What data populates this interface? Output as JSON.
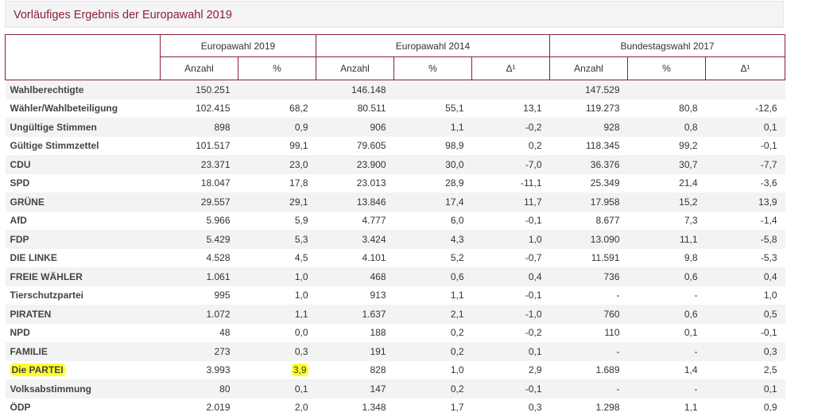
{
  "page": {
    "title": "Vorläufiges Ergebnis der Europawahl 2019"
  },
  "colors": {
    "accent": "#8a2035",
    "highlight": "#ffff33",
    "zebra": "#f3f3f3"
  },
  "table": {
    "groups": [
      "Europawahl 2019",
      "Europawahl 2014",
      "Bundestagswahl 2017"
    ],
    "subheaders": [
      "Anzahl",
      "%",
      "Anzahl",
      "%",
      "Δ¹",
      "Anzahl",
      "%",
      "Δ¹"
    ],
    "rows": [
      {
        "label": "Wahlberechtigte",
        "cells": [
          "150.251",
          "",
          "146.148",
          "",
          "",
          "147.529",
          "",
          ""
        ]
      },
      {
        "label": "Wähler/Wahlbeteiligung",
        "cells": [
          "102.415",
          "68,2",
          "80.511",
          "55,1",
          "13,1",
          "119.273",
          "80,8",
          "-12,6"
        ]
      },
      {
        "label": "Ungültige Stimmen",
        "cells": [
          "898",
          "0,9",
          "906",
          "1,1",
          "-0,2",
          "928",
          "0,8",
          "0,1"
        ]
      },
      {
        "label": "Gültige Stimmzettel",
        "cells": [
          "101.517",
          "99,1",
          "79.605",
          "98,9",
          "0,2",
          "118.345",
          "99,2",
          "-0,1"
        ]
      },
      {
        "label": "CDU",
        "cells": [
          "23.371",
          "23,0",
          "23.900",
          "30,0",
          "-7,0",
          "36.376",
          "30,7",
          "-7,7"
        ]
      },
      {
        "label": "SPD",
        "cells": [
          "18.047",
          "17,8",
          "23.013",
          "28,9",
          "-11,1",
          "25.349",
          "21,4",
          "-3,6"
        ]
      },
      {
        "label": "GRÜNE",
        "cells": [
          "29.557",
          "29,1",
          "13.846",
          "17,4",
          "11,7",
          "17.958",
          "15,2",
          "13,9"
        ]
      },
      {
        "label": "AfD",
        "cells": [
          "5.966",
          "5,9",
          "4.777",
          "6,0",
          "-0,1",
          "8.677",
          "7,3",
          "-1,4"
        ]
      },
      {
        "label": "FDP",
        "cells": [
          "5.429",
          "5,3",
          "3.424",
          "4,3",
          "1,0",
          "13.090",
          "11,1",
          "-5,8"
        ]
      },
      {
        "label": "DIE LINKE",
        "cells": [
          "4.528",
          "4,5",
          "4.101",
          "5,2",
          "-0,7",
          "11.591",
          "9,8",
          "-5,3"
        ]
      },
      {
        "label": "FREIE WÄHLER",
        "cells": [
          "1.061",
          "1,0",
          "468",
          "0,6",
          "0,4",
          "736",
          "0,6",
          "0,4"
        ]
      },
      {
        "label": "Tierschutzpartei",
        "cells": [
          "995",
          "1,0",
          "913",
          "1,1",
          "-0,1",
          "-",
          "-",
          "1,0"
        ]
      },
      {
        "label": "PIRATEN",
        "cells": [
          "1.072",
          "1,1",
          "1.637",
          "2,1",
          "-1,0",
          "760",
          "0,6",
          "0,5"
        ]
      },
      {
        "label": "NPD",
        "cells": [
          "48",
          "0,0",
          "188",
          "0,2",
          "-0,2",
          "110",
          "0,1",
          "-0,1"
        ]
      },
      {
        "label": "FAMILIE",
        "cells": [
          "273",
          "0,3",
          "191",
          "0,2",
          "0,1",
          "-",
          "-",
          "0,3"
        ]
      },
      {
        "label": "Die PARTEI",
        "cells": [
          "3.993",
          "3,9",
          "828",
          "1,0",
          "2,9",
          "1.689",
          "1,4",
          "2,5"
        ],
        "highlight": [
          -1,
          1
        ]
      },
      {
        "label": "Volksabstimmung",
        "cells": [
          "80",
          "0,1",
          "147",
          "0,2",
          "-0,1",
          "-",
          "-",
          "0,1"
        ]
      },
      {
        "label": "ÖDP",
        "cells": [
          "2.019",
          "2,0",
          "1.348",
          "1,7",
          "0,3",
          "1.298",
          "1,1",
          "0,9"
        ]
      }
    ]
  }
}
